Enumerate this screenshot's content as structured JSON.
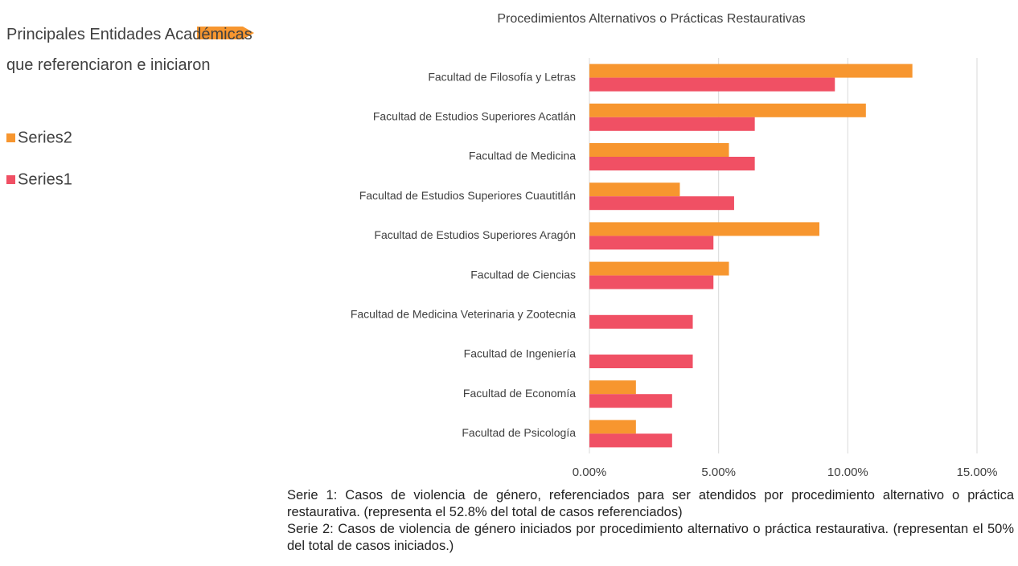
{
  "side_note": "Principales Entidades Académicas que referenciaron e iniciaron",
  "chart_data": {
    "type": "bar",
    "orientation": "horizontal",
    "title": "Procedimientos Alternativos o Prácticas Restaurativas",
    "categories": [
      "Facultad de Filosofía y Letras",
      "Facultad de Estudios Superiores Acatlán",
      "Facultad de Medicina",
      "Facultad de Estudios Superiores Cuautitlán",
      "Facultad de Estudios Superiores Aragón",
      "Facultad de Ciencias",
      "Facultad de Medicina Veterinaria y Zootecnia",
      "Facultad de Ingeniería",
      "Facultad de Economía",
      "Facultad de Psicología"
    ],
    "series": [
      {
        "name": "Series2",
        "color": "#f7962f",
        "values": [
          12.5,
          10.7,
          5.4,
          3.5,
          8.9,
          5.4,
          null,
          null,
          1.8,
          1.8
        ]
      },
      {
        "name": "Series1",
        "color": "#f05064",
        "values": [
          9.5,
          6.4,
          6.4,
          5.6,
          4.8,
          4.8,
          4.0,
          4.0,
          3.2,
          3.2
        ]
      }
    ],
    "xlim": [
      0,
      15
    ],
    "xticks": [
      {
        "value": 0,
        "label": "0.00%"
      },
      {
        "value": 5,
        "label": "5.00%"
      },
      {
        "value": 10,
        "label": "10.00%"
      },
      {
        "value": 15,
        "label": "15.00%"
      }
    ],
    "grid": true,
    "legend": "left"
  },
  "notes": [
    "Serie 1: Casos de violencia de género, referenciados para ser atendidos por procedimiento alternativo o práctica restaurativa. (representa el 52.8% del total de casos referenciados)",
    "Serie 2: Casos de violencia de género iniciados por procedimiento alternativo o práctica restaurativa. (representan el 50% del total de casos iniciados.)"
  ]
}
